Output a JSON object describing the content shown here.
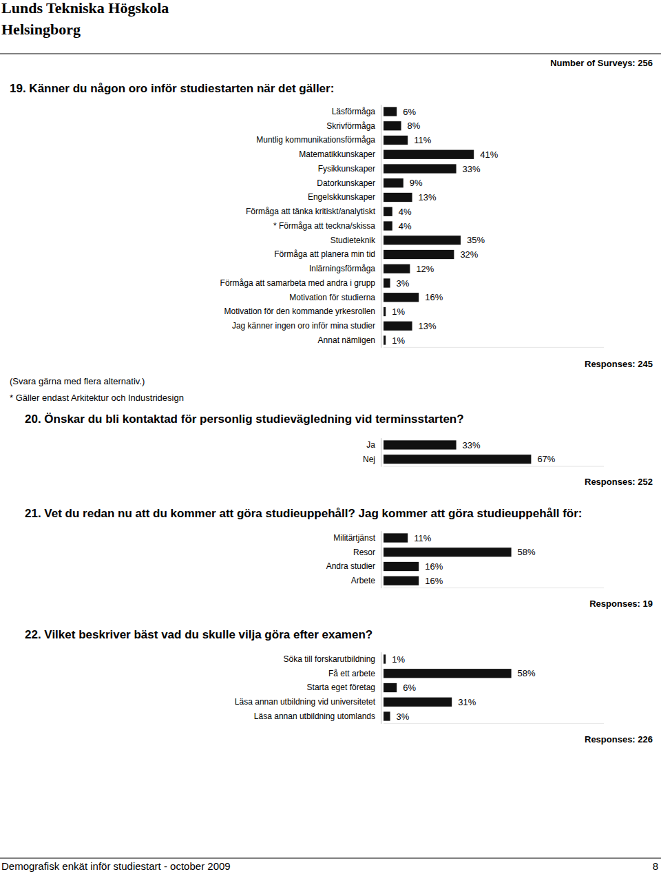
{
  "header": {
    "title": "Lunds Tekniska Högskola",
    "subtitle": "Helsingborg",
    "surveys": "Number of Surveys: 256"
  },
  "footer": {
    "text": "Demografisk enkät inför studiestart - october 2009",
    "page": "8"
  },
  "chart_data": [
    {
      "type": "bar",
      "orientation": "horizontal",
      "data_labels": true,
      "tick_labels": "y",
      "color": "#111111",
      "title": "19. Känner du någon oro inför studiestarten när det gäller:",
      "categories": [
        "Läsförmåga",
        "Skrivförmåga",
        "Muntlig kommunikationsförmåga",
        "Matematikkunskaper",
        "Fysikkunskaper",
        "Datorkunskaper",
        "Engelskkunskaper",
        "Förmåga att tänka kritiskt/analytiskt",
        "* Förmåga att teckna/skissa",
        "Studieteknik",
        "Förmåga att planera min tid",
        "Inlärningsförmåga",
        "Förmåga att samarbeta med andra i grupp",
        "Motivation för studierna",
        "Motivation för den kommande yrkesrollen",
        "Jag känner ingen oro inför mina studier",
        "Annat nämligen"
      ],
      "values": [
        6,
        8,
        11,
        41,
        33,
        9,
        13,
        4,
        4,
        35,
        32,
        12,
        3,
        16,
        1,
        13,
        1
      ],
      "value_labels": [
        "6%",
        "8%",
        "11%",
        "41%",
        "33%",
        "9%",
        "13%",
        "4%",
        "4%",
        "35%",
        "32%",
        "12%",
        "3%",
        "16%",
        "1%",
        "13%",
        "1%"
      ],
      "xlim": [
        0,
        100
      ],
      "responses": "Responses: 245",
      "notes": [
        "(Svara gärna med flera alternativ.)",
        "* Gäller endast Arkitektur och Industridesign"
      ]
    },
    {
      "type": "bar",
      "orientation": "horizontal",
      "data_labels": true,
      "tick_labels": "y",
      "color": "#111111",
      "title": "20. Önskar du bli kontaktad för personlig studievägledning vid terminsstarten?",
      "categories": [
        "Ja",
        "Nej"
      ],
      "values": [
        33,
        67
      ],
      "value_labels": [
        "33%",
        "67%"
      ],
      "xlim": [
        0,
        100
      ],
      "responses": "Responses: 252"
    },
    {
      "type": "bar",
      "orientation": "horizontal",
      "data_labels": true,
      "tick_labels": "y",
      "color": "#111111",
      "title": "21. Vet du redan nu att du kommer att göra studieuppehåll? Jag kommer att göra studieuppehåll för:",
      "categories": [
        "Militärtjänst",
        "Resor",
        "Andra studier",
        "Arbete"
      ],
      "values": [
        11,
        58,
        16,
        16
      ],
      "value_labels": [
        "11%",
        "58%",
        "16%",
        "16%"
      ],
      "xlim": [
        0,
        100
      ],
      "responses": "Responses: 19"
    },
    {
      "type": "bar",
      "orientation": "horizontal",
      "data_labels": true,
      "tick_labels": "y",
      "color": "#111111",
      "title": "22. Vilket beskriver bäst vad du skulle vilja göra efter examen?",
      "categories": [
        "Söka till forskarutbildning",
        "Få ett arbete",
        "Starta eget företag",
        "Läsa annan utbildning vid universitetet",
        "Läsa annan utbildning utomlands"
      ],
      "values": [
        1,
        58,
        6,
        31,
        3
      ],
      "value_labels": [
        "1%",
        "58%",
        "6%",
        "31%",
        "3%"
      ],
      "xlim": [
        0,
        100
      ],
      "responses": "Responses: 226"
    }
  ]
}
